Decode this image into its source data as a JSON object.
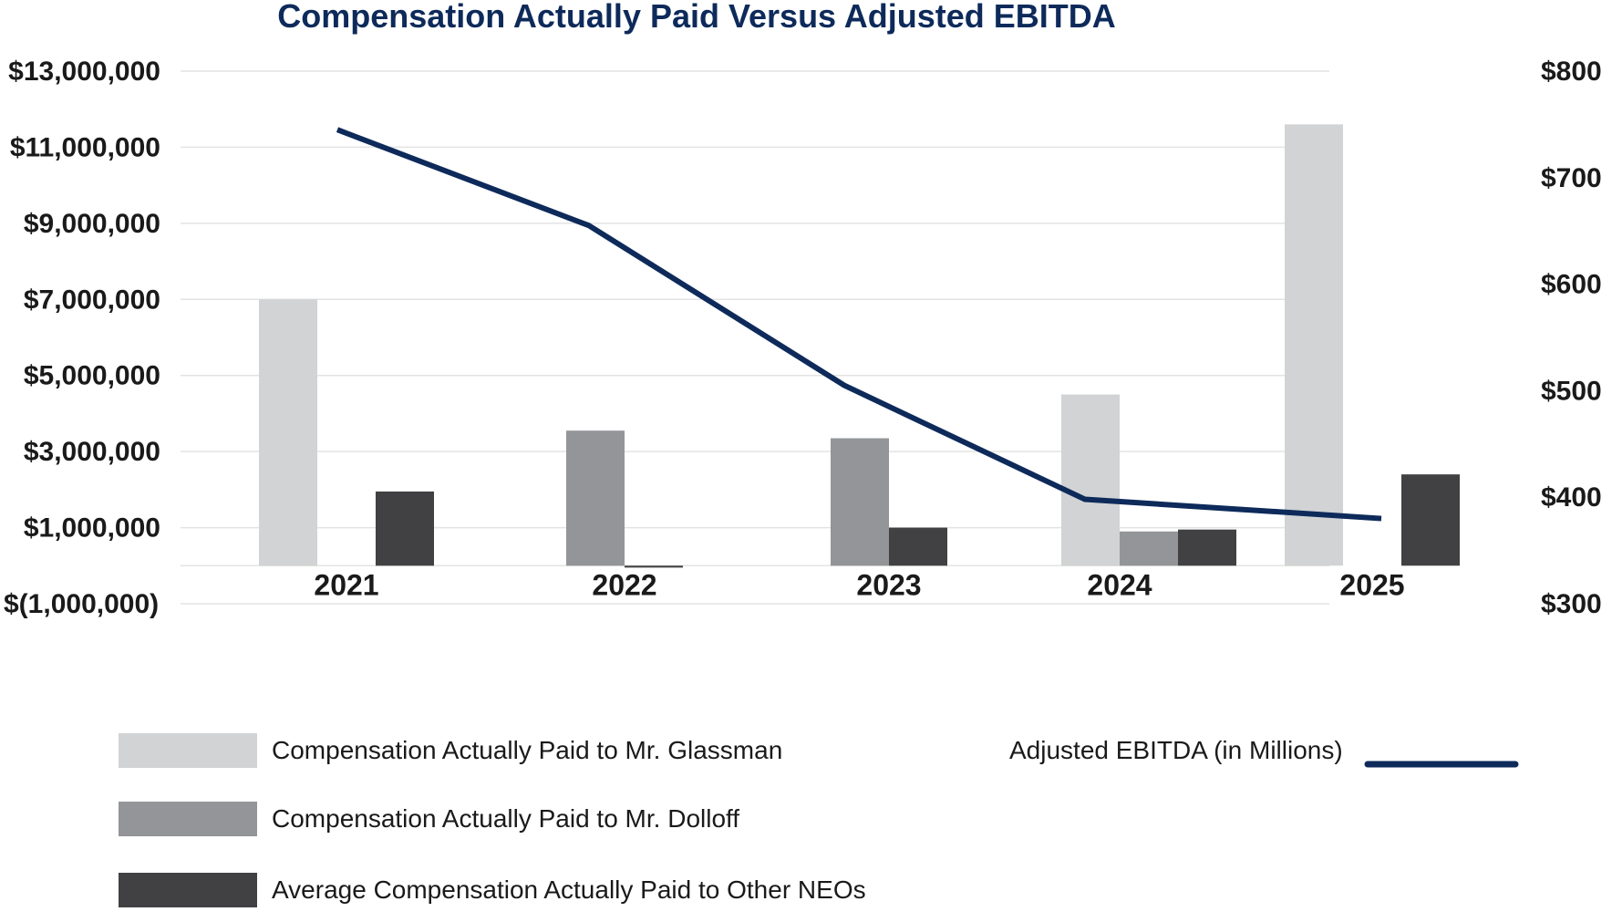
{
  "chart_data": {
    "type": "bar",
    "title": "Compensation Actually Paid Versus Adjusted EBITDA",
    "categories": [
      "2021",
      "2022",
      "2023",
      "2024",
      "2025"
    ],
    "y_left": {
      "ticks": [
        "$13,000,000",
        "$11,000,000",
        "$9,000,000",
        "$7,000,000",
        "$5,000,000",
        "$3,000,000",
        "$1,000,000",
        "$(1,000,000)"
      ],
      "range": [
        -1000000,
        13000000
      ]
    },
    "y_right": {
      "ticks": [
        "$800",
        "$700",
        "$600",
        "$500",
        "$400",
        "$300"
      ],
      "range": [
        300,
        800
      ]
    },
    "series": [
      {
        "name": "Compensation Actually Paid to Mr. Glassman",
        "kind": "bar",
        "axis": "left",
        "color": "#d1d3d4",
        "values": [
          7000000,
          null,
          null,
          4500000,
          11600000
        ]
      },
      {
        "name": "Compensation Actually Paid to Mr. Dolloff",
        "kind": "bar",
        "axis": "left",
        "color": "#939598",
        "values": [
          null,
          3550000,
          3350000,
          900000,
          null
        ]
      },
      {
        "name": "Average Compensation Actually Paid to Other NEOs",
        "kind": "bar",
        "axis": "left",
        "color": "#414042",
        "values": [
          1950000,
          -50000,
          1000000,
          950000,
          2400000
        ]
      },
      {
        "name": "Adjusted EBITDA (in Millions)",
        "kind": "line",
        "axis": "right",
        "color": "#0d2a5a",
        "values": [
          745,
          655,
          505,
          398,
          380
        ]
      }
    ],
    "grid": true,
    "legend_position": "bottom"
  }
}
